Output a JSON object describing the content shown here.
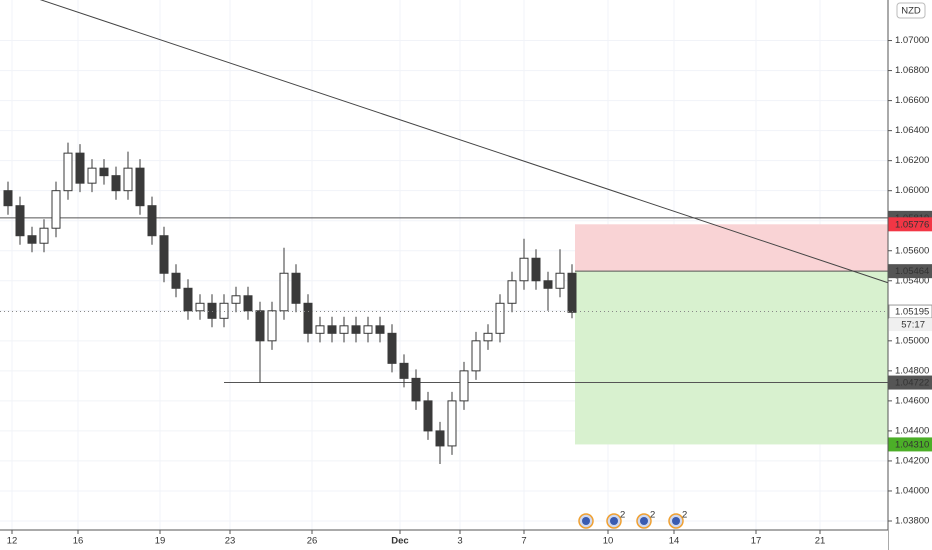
{
  "chart_data": {
    "type": "candlestick",
    "currency": "NZD",
    "countdown": "57:17",
    "xlim": [
      0,
      222
    ],
    "ylim": [
      1.0374,
      1.0727
    ],
    "grid": true,
    "xticks": [
      {
        "value": 3,
        "label": "12"
      },
      {
        "value": 19.5,
        "label": "16"
      },
      {
        "value": 40,
        "label": "19"
      },
      {
        "value": 57.5,
        "label": "23"
      },
      {
        "value": 78,
        "label": "26"
      },
      {
        "value": 100,
        "label": "Dec"
      },
      {
        "value": 115,
        "label": "3"
      },
      {
        "value": 131,
        "label": "7"
      },
      {
        "value": 152,
        "label": "10"
      },
      {
        "value": 168.5,
        "label": "14"
      },
      {
        "value": 189,
        "label": "17"
      },
      {
        "value": 205,
        "label": "21"
      }
    ],
    "yticks": [
      {
        "value": 1.038,
        "label": "1.03800"
      },
      {
        "value": 1.04,
        "label": "1.04000"
      },
      {
        "value": 1.042,
        "label": "1.04200"
      },
      {
        "value": 1.044,
        "label": "1.04400"
      },
      {
        "value": 1.046,
        "label": "1.04600"
      },
      {
        "value": 1.048,
        "label": "1.04800"
      },
      {
        "value": 1.05,
        "label": "1.05000"
      },
      {
        "value": 1.052,
        "label": "1.05200"
      },
      {
        "value": 1.054,
        "label": "1.05400"
      },
      {
        "value": 1.056,
        "label": "1.05600"
      },
      {
        "value": 1.058,
        "label": "1.05800"
      },
      {
        "value": 1.06,
        "label": "1.06000"
      },
      {
        "value": 1.062,
        "label": "1.06200"
      },
      {
        "value": 1.064,
        "label": "1.06400"
      },
      {
        "value": 1.066,
        "label": "1.06600"
      },
      {
        "value": 1.068,
        "label": "1.06800"
      },
      {
        "value": 1.07,
        "label": "1.07000"
      }
    ],
    "color": "#3a3a3a",
    "x": [
      2,
      5,
      8,
      11,
      14,
      17,
      20,
      23,
      26,
      29,
      32,
      35,
      38,
      41,
      44,
      47,
      50,
      53,
      56,
      59,
      62,
      65,
      68,
      71,
      74,
      77,
      80,
      83,
      86,
      89,
      92,
      95,
      98,
      101,
      104,
      107,
      110,
      113,
      116,
      119,
      122,
      125,
      128,
      131,
      134,
      137,
      140,
      143
    ],
    "open": [
      1.06,
      1.059,
      1.057,
      1.0565,
      1.0575,
      1.06,
      1.0625,
      1.0605,
      1.0615,
      1.061,
      1.06,
      1.0615,
      1.059,
      1.057,
      1.0545,
      1.0535,
      1.052,
      1.0525,
      1.0515,
      1.0525,
      1.053,
      1.052,
      1.05,
      1.052,
      1.0545,
      1.0525,
      1.0505,
      1.051,
      1.0505,
      1.051,
      1.0505,
      1.051,
      1.0505,
      1.0485,
      1.0475,
      1.046,
      1.044,
      1.043,
      1.046,
      1.048,
      1.05,
      1.0505,
      1.0525,
      1.054,
      1.0555,
      1.054,
      1.0535,
      1.0545
    ],
    "high": [
      1.0606,
      1.0596,
      1.0576,
      1.0581,
      1.0606,
      1.0632,
      1.0631,
      1.0621,
      1.0621,
      1.0616,
      1.0626,
      1.0621,
      1.0596,
      1.0576,
      1.0551,
      1.0541,
      1.0531,
      1.0531,
      1.0531,
      1.0536,
      1.0536,
      1.0526,
      1.0526,
      1.0562,
      1.0551,
      1.0531,
      1.0516,
      1.0516,
      1.0516,
      1.0516,
      1.0516,
      1.0516,
      1.0511,
      1.0491,
      1.0481,
      1.0466,
      1.0446,
      1.0466,
      1.0486,
      1.0506,
      1.0511,
      1.0531,
      1.0546,
      1.0568,
      1.0561,
      1.0546,
      1.0561,
      1.0551
    ],
    "low": [
      1.0584,
      1.0564,
      1.0559,
      1.0559,
      1.0569,
      1.0594,
      1.0599,
      1.0599,
      1.0604,
      1.0594,
      1.0594,
      1.0584,
      1.0564,
      1.0539,
      1.0529,
      1.0514,
      1.0514,
      1.0509,
      1.0509,
      1.0519,
      1.0514,
      1.0472,
      1.0494,
      1.0514,
      1.0519,
      1.0499,
      1.0499,
      1.0499,
      1.0499,
      1.0499,
      1.0499,
      1.0499,
      1.0479,
      1.0469,
      1.0454,
      1.0434,
      1.0418,
      1.0424,
      1.0454,
      1.0474,
      1.0494,
      1.0499,
      1.0519,
      1.0534,
      1.0534,
      1.052,
      1.0529,
      1.0515
    ],
    "close": [
      1.059,
      1.057,
      1.0565,
      1.0575,
      1.06,
      1.0625,
      1.0605,
      1.0615,
      1.061,
      1.06,
      1.0615,
      1.059,
      1.057,
      1.0545,
      1.0535,
      1.052,
      1.0525,
      1.0515,
      1.0525,
      1.053,
      1.052,
      1.05,
      1.052,
      1.0545,
      1.0525,
      1.0505,
      1.051,
      1.0505,
      1.051,
      1.0505,
      1.051,
      1.0505,
      1.0485,
      1.0475,
      1.046,
      1.044,
      1.043,
      1.046,
      1.048,
      1.05,
      1.0505,
      1.0525,
      1.054,
      1.0555,
      1.054,
      1.0535,
      1.0545,
      1.0519
    ],
    "trend_line": {
      "x": [
        10,
        222
      ],
      "y": [
        1.07273,
        1.05387
      ]
    },
    "horizontal_lines": [
      {
        "x": 0,
        "value": 1.05819
      },
      {
        "x": 56,
        "value": 1.04722
      }
    ],
    "position": {
      "x": 143.75,
      "stop": 1.05776,
      "entry": 1.05464,
      "target": 1.0431,
      "stop_color": "#f9d3d5",
      "target_color": "#d8f1cf"
    },
    "price_labels": [
      {
        "value": 1.05819,
        "label": "1.05819",
        "color": "#555555"
      },
      {
        "value": 1.05776,
        "label": "1.05776",
        "color": "#f23645"
      },
      {
        "value": 1.05464,
        "label": "1.05464",
        "color": "#555555"
      },
      {
        "value": 1.05195,
        "label": "1.05195",
        "color": "#ffffff"
      },
      {
        "value": 1.04722,
        "label": "1.04722",
        "color": "#555555"
      },
      {
        "value": 1.0431,
        "label": "1.04310",
        "color": "#4caf28"
      }
    ],
    "events": [
      {
        "x": 146.5
      },
      {
        "x": 153.5,
        "count": 2
      },
      {
        "x": 161,
        "count": 2
      },
      {
        "x": 169,
        "count": 2
      }
    ]
  }
}
